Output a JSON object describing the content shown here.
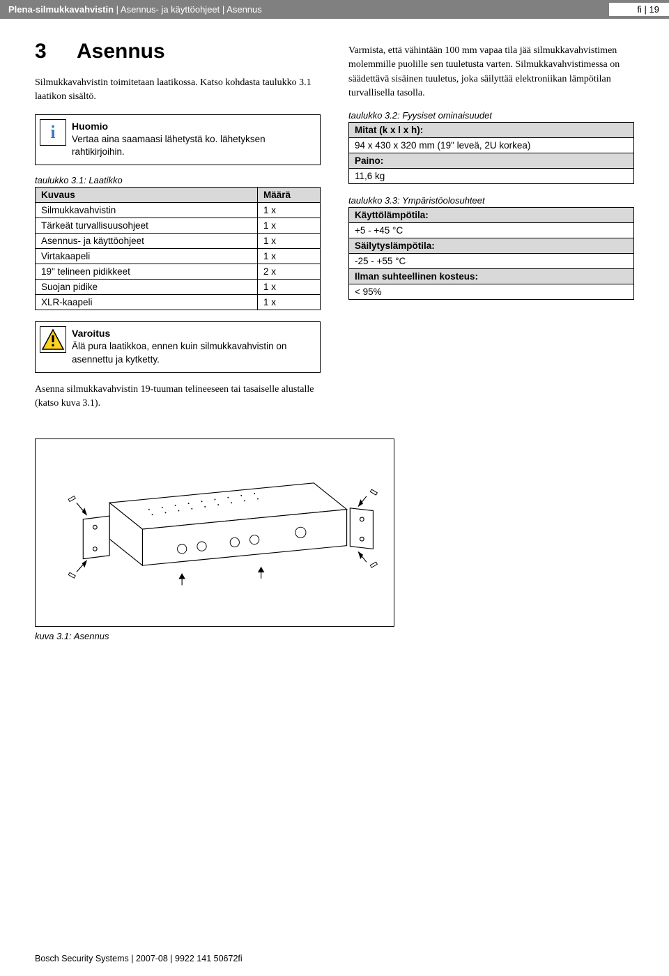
{
  "header": {
    "product": "Plena-silmukkavahvistin",
    "sep": " | ",
    "doc": "Asennus- ja käyttöohjeet",
    "section": "Asennus",
    "lang": "fi",
    "page": "19"
  },
  "section": {
    "number": "3",
    "title": "Asennus"
  },
  "intro": "Silmukkavahvistin toimitetaan laatikossa. Katso kohdasta taulukko 3.1 laatikon sisältö.",
  "notice": {
    "title": "Huomio",
    "body": "Vertaa aina saamaasi lähetystä ko. lähetyksen rahtikirjoihin."
  },
  "table1": {
    "caption": "taulukko 3.1: Laatikko",
    "columns": [
      "Kuvaus",
      "Määrä"
    ],
    "rows": [
      [
        "Silmukkavahvistin",
        "1 x"
      ],
      [
        "Tärkeät turvallisuusohjeet",
        "1 x"
      ],
      [
        "Asennus- ja käyttöohjeet",
        "1 x"
      ],
      [
        "Virtakaapeli",
        "1 x"
      ],
      [
        "19\" telineen pidikkeet",
        "2 x"
      ],
      [
        "Suojan pidike",
        "1 x"
      ],
      [
        "XLR-kaapeli",
        "1 x"
      ]
    ]
  },
  "warning": {
    "title": "Varoitus",
    "body": "Älä pura laatikkoa, ennen kuin silmukkavahvistin on asennettu ja kytketty."
  },
  "install_text": "Asenna silmukkavahvistin 19-tuuman telineeseen tai tasaiselle alustalle (katso kuva 3.1).",
  "right_intro": "Varmista, että vähintään 100 mm vapaa tila jää silmukkavahvistimen molemmille puolille sen tuuletusta varten. Silmukkavahvistimessa on säädettävä sisäinen tuuletus, joka säilyttää elektroniikan lämpötilan turvallisella tasolla.",
  "table2": {
    "caption": "taulukko 3.2: Fyysiset ominaisuudet",
    "rows": [
      {
        "label": "Mitat (k x l x h):",
        "value": "94 x 430 x 320 mm (19\" leveä, 2U korkea)"
      },
      {
        "label": "Paino:",
        "value": "11,6 kg"
      }
    ]
  },
  "table3": {
    "caption": "taulukko 3.3: Ympäristöolosuhteet",
    "rows": [
      {
        "label": "Käyttölämpötila:",
        "value": "+5 - +45 °C"
      },
      {
        "label": "Säilytyslämpötila:",
        "value": "-25 - +55 °C"
      },
      {
        "label": "Ilman suhteellinen kosteus:",
        "value": "< 95%"
      }
    ]
  },
  "figure": {
    "caption": "kuva 3.1: Asennus"
  },
  "footer": "Bosch Security Systems | 2007-08 | 9922 141 50672fi",
  "colors": {
    "header_bg": "#808080",
    "header_fg": "#ffffff",
    "table_header_bg": "#d9d9d9",
    "info_icon": "#3a7abf",
    "warn_yellow": "#ffd21f",
    "text": "#000000"
  }
}
